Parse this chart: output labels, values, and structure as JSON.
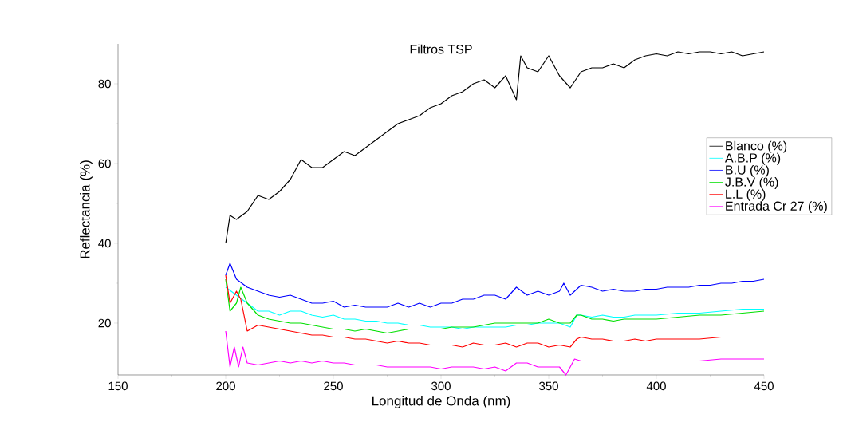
{
  "chart_data": {
    "type": "line",
    "title": "Filtros TSP",
    "xlabel": "Longitud de Onda (nm)",
    "ylabel": "Reflectancia (%)",
    "xlim": [
      150,
      450
    ],
    "ylim": [
      7,
      90
    ],
    "xticks": [
      150,
      200,
      250,
      300,
      350,
      400,
      450
    ],
    "yticks": [
      20,
      40,
      60,
      80
    ],
    "grid": false,
    "legend": "right",
    "marker": "none",
    "line_style": "solid",
    "series": [
      {
        "name": "Blanco (%)",
        "color": "#000000",
        "x": [
          200,
          202,
          205,
          210,
          215,
          220,
          225,
          230,
          235,
          240,
          245,
          250,
          255,
          260,
          265,
          270,
          275,
          280,
          285,
          290,
          295,
          300,
          305,
          310,
          315,
          320,
          325,
          330,
          335,
          337,
          340,
          345,
          350,
          355,
          360,
          365,
          370,
          375,
          380,
          385,
          390,
          395,
          400,
          405,
          410,
          415,
          420,
          425,
          430,
          435,
          440,
          445,
          450
        ],
        "values": [
          40,
          47,
          46,
          48,
          52,
          51,
          53,
          56,
          61,
          59,
          59,
          61,
          63,
          62,
          64,
          66,
          68,
          70,
          71,
          72,
          74,
          75,
          77,
          78,
          80,
          81,
          79,
          82,
          76,
          87,
          84,
          83,
          87,
          82,
          79,
          83,
          84,
          84,
          85,
          84,
          86,
          87,
          87.5,
          87,
          88,
          87.5,
          88,
          88,
          87.5,
          88,
          87,
          87.5,
          88
        ]
      },
      {
        "name": "A.B.P (%)",
        "color": "#00ffff",
        "x": [
          200,
          205,
          210,
          215,
          220,
          225,
          230,
          235,
          240,
          245,
          250,
          255,
          260,
          265,
          270,
          275,
          280,
          285,
          290,
          295,
          300,
          305,
          310,
          315,
          320,
          325,
          330,
          335,
          340,
          345,
          350,
          355,
          360,
          363,
          365,
          370,
          375,
          380,
          385,
          390,
          395,
          400,
          410,
          420,
          430,
          440,
          450
        ],
        "values": [
          29,
          27,
          25,
          23,
          23,
          22,
          23,
          23,
          22,
          21.5,
          22,
          21,
          21,
          20.5,
          20.5,
          20,
          20,
          19.5,
          19.5,
          19,
          19,
          19,
          18.5,
          19,
          19,
          19,
          19,
          19.5,
          19.5,
          20,
          20,
          20,
          19,
          22,
          22,
          21.5,
          22,
          21.5,
          21.5,
          22,
          22,
          22,
          22.5,
          22.5,
          23,
          23.5,
          23.5
        ]
      },
      {
        "name": "B.U (%)",
        "color": "#0000ff",
        "x": [
          200,
          202,
          205,
          210,
          215,
          220,
          225,
          230,
          235,
          240,
          245,
          250,
          255,
          260,
          265,
          270,
          275,
          280,
          285,
          290,
          295,
          300,
          305,
          310,
          315,
          320,
          325,
          330,
          335,
          340,
          345,
          350,
          355,
          357,
          360,
          365,
          370,
          375,
          380,
          385,
          390,
          395,
          400,
          405,
          410,
          415,
          420,
          425,
          430,
          435,
          440,
          445,
          450
        ],
        "values": [
          32,
          35,
          31,
          29,
          28,
          27,
          26.5,
          27,
          26,
          25,
          25,
          25.5,
          24,
          24.5,
          24,
          24,
          24,
          25,
          24,
          25,
          24,
          25,
          25,
          26,
          26,
          27,
          27,
          26,
          29,
          27,
          28,
          27,
          28,
          30,
          27,
          29.5,
          29,
          28,
          28.5,
          28,
          28,
          28.5,
          28.5,
          29,
          29,
          29,
          29.5,
          29.5,
          30,
          30,
          30.5,
          30.5,
          31
        ]
      },
      {
        "name": "J.B.V (%)",
        "color": "#00e000",
        "x": [
          200,
          202,
          205,
          207,
          210,
          215,
          220,
          225,
          230,
          235,
          240,
          245,
          250,
          255,
          260,
          265,
          270,
          275,
          280,
          285,
          290,
          295,
          300,
          305,
          310,
          315,
          320,
          325,
          330,
          335,
          340,
          345,
          350,
          355,
          360,
          363,
          365,
          370,
          375,
          380,
          385,
          390,
          395,
          400,
          410,
          420,
          430,
          440,
          450
        ],
        "values": [
          31,
          23,
          25,
          29,
          25,
          22,
          21,
          20.5,
          20,
          20,
          19.5,
          19,
          18.5,
          18.5,
          18,
          18.5,
          18,
          17.5,
          18,
          18.5,
          18.5,
          18.5,
          18.5,
          19,
          19,
          19,
          19.5,
          20,
          20,
          20,
          20,
          20,
          21,
          20,
          20,
          22,
          22,
          21,
          21,
          20.5,
          21,
          21,
          21,
          21,
          21.5,
          22,
          22,
          22.5,
          23
        ]
      },
      {
        "name": "L.L (%)",
        "color": "#ff0000",
        "x": [
          200,
          202,
          205,
          207,
          210,
          215,
          220,
          225,
          230,
          235,
          240,
          245,
          250,
          255,
          260,
          265,
          270,
          275,
          280,
          285,
          290,
          295,
          300,
          305,
          310,
          315,
          320,
          325,
          330,
          335,
          340,
          345,
          350,
          355,
          360,
          363,
          365,
          370,
          375,
          380,
          385,
          390,
          395,
          400,
          410,
          420,
          430,
          440,
          450
        ],
        "values": [
          32,
          25,
          28,
          26,
          18,
          19.5,
          19,
          18.5,
          18,
          17.5,
          17,
          17,
          16.5,
          16.5,
          16,
          16,
          15.5,
          15,
          15.5,
          15,
          15,
          14.5,
          14.5,
          14.5,
          14,
          15,
          14.5,
          14.5,
          15,
          14,
          15,
          15,
          14,
          14.5,
          14,
          16,
          16.5,
          16,
          16,
          15.5,
          15.5,
          16,
          15.5,
          16,
          16,
          16,
          16.5,
          16.5,
          16.5
        ]
      },
      {
        "name": "Entrada Cr 27 (%)",
        "color": "#ff00ff",
        "x": [
          200,
          202,
          204,
          206,
          208,
          210,
          215,
          220,
          225,
          230,
          235,
          240,
          245,
          250,
          255,
          260,
          265,
          270,
          275,
          280,
          285,
          290,
          295,
          300,
          305,
          310,
          315,
          320,
          325,
          330,
          335,
          340,
          345,
          350,
          355,
          358,
          362,
          365,
          370,
          380,
          390,
          400,
          410,
          420,
          430,
          440,
          450
        ],
        "values": [
          18,
          9,
          14,
          9,
          14,
          10,
          9.5,
          10,
          10.5,
          10,
          10.5,
          10,
          10.5,
          10,
          10,
          9.5,
          9.5,
          9.5,
          9,
          9,
          9,
          9,
          9,
          8.5,
          9,
          9,
          9,
          8.5,
          9,
          8,
          10,
          10,
          9,
          9,
          9,
          7,
          11,
          10.5,
          10.5,
          10.5,
          10.5,
          10.5,
          10.5,
          10.5,
          11,
          11,
          11
        ]
      }
    ]
  }
}
